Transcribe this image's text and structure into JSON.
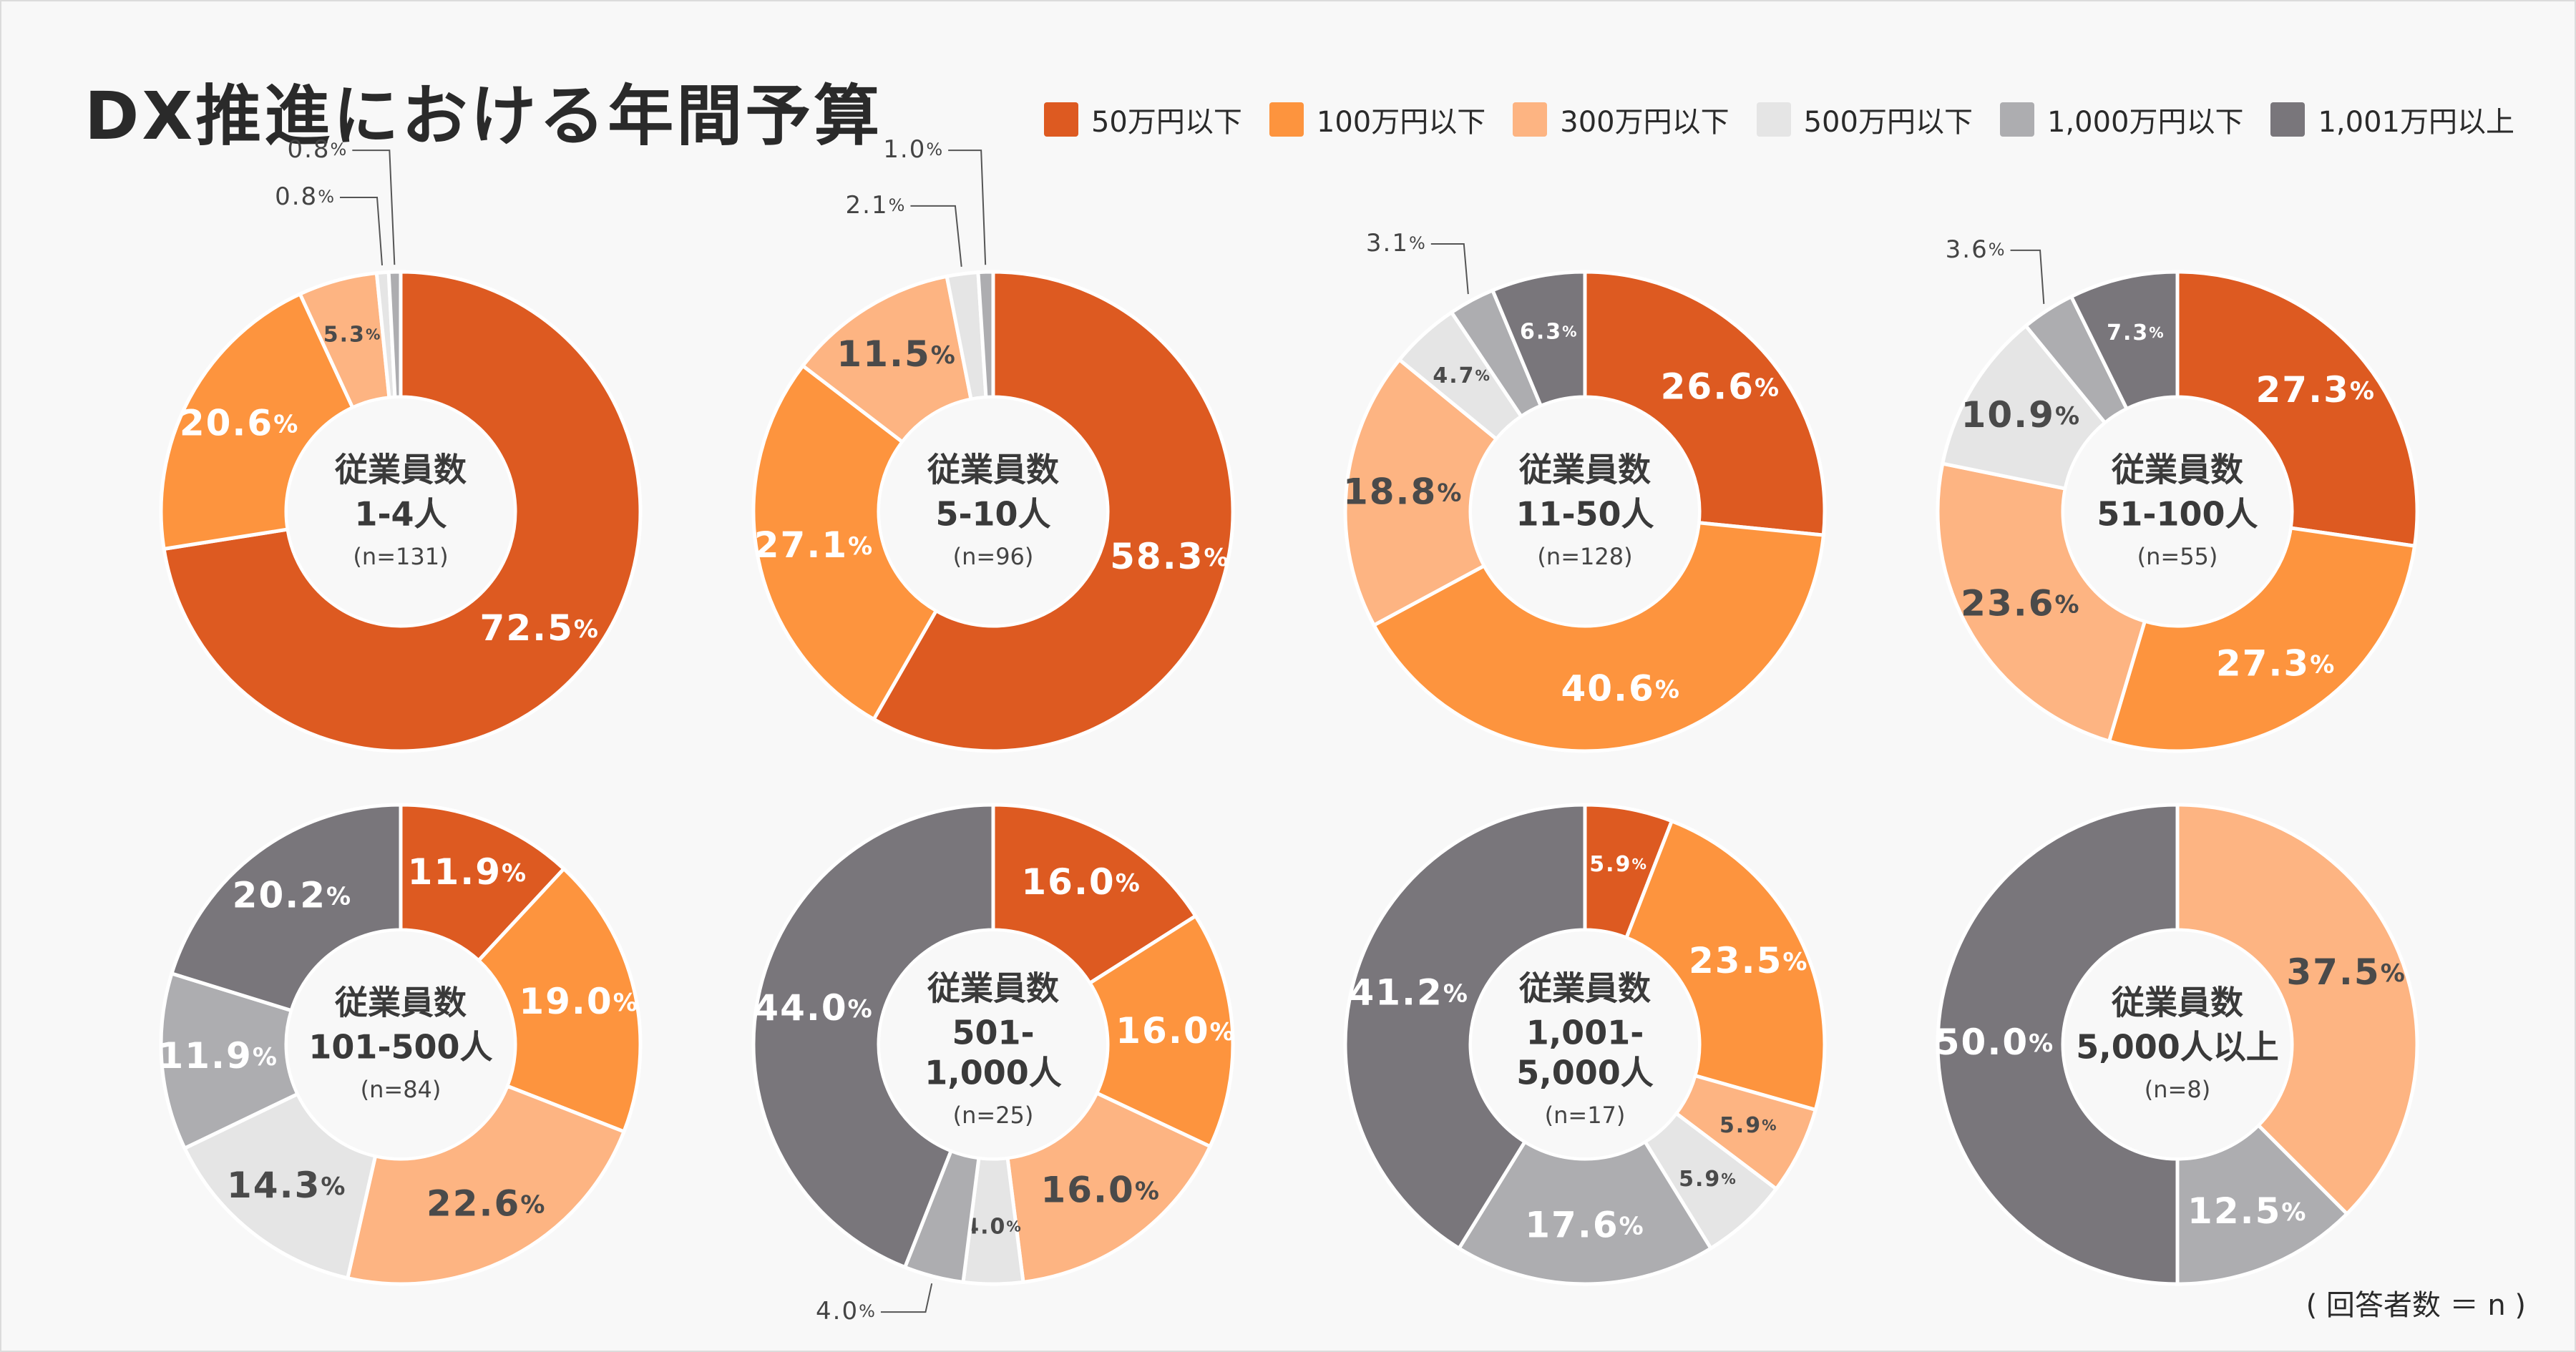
{
  "title": "DX推進における年間予算",
  "footnote": "( 回答者数 ＝ n )",
  "colors": {
    "50万円以下": "#dd5a21",
    "100万円以下": "#fd943e",
    "300万円以下": "#fdb482",
    "500万円以下": "#e5e5e5",
    "1,000万円以下": "#adadb0",
    "1,001万円以上": "#79767b"
  },
  "legend": [
    "50万円以下",
    "100万円以下",
    "300万円以下",
    "500万円以下",
    "1,000万円以下",
    "1,001万円以上"
  ],
  "chart_data": [
    {
      "type": "pie",
      "donut": true,
      "center_title": "従業員数",
      "center_lines": [
        "1-4人"
      ],
      "n_label": "(n=131)",
      "categories": [
        "50万円以下",
        "100万円以下",
        "300万円以下",
        "500万円以下",
        "1,000万円以下",
        "1,001万円以上"
      ],
      "values": [
        72.5,
        20.6,
        5.3,
        0.8,
        0.8,
        0
      ]
    },
    {
      "type": "pie",
      "donut": true,
      "center_title": "従業員数",
      "center_lines": [
        "5-10人"
      ],
      "n_label": "(n=96)",
      "categories": [
        "50万円以下",
        "100万円以下",
        "300万円以下",
        "500万円以下",
        "1,000万円以下",
        "1,001万円以上"
      ],
      "values": [
        58.3,
        27.1,
        11.5,
        2.1,
        1.0,
        0
      ]
    },
    {
      "type": "pie",
      "donut": true,
      "center_title": "従業員数",
      "center_lines": [
        "11-50人"
      ],
      "n_label": "(n=128)",
      "categories": [
        "50万円以下",
        "100万円以下",
        "300万円以下",
        "500万円以下",
        "1,000万円以下",
        "1,001万円以上"
      ],
      "values": [
        26.6,
        40.6,
        18.8,
        4.7,
        3.1,
        6.3
      ]
    },
    {
      "type": "pie",
      "donut": true,
      "center_title": "従業員数",
      "center_lines": [
        "51-100人"
      ],
      "n_label": "(n=55)",
      "categories": [
        "50万円以下",
        "100万円以下",
        "300万円以下",
        "500万円以下",
        "1,000万円以下",
        "1,001万円以上"
      ],
      "values": [
        27.3,
        27.3,
        23.6,
        10.9,
        3.6,
        7.3
      ]
    },
    {
      "type": "pie",
      "donut": true,
      "center_title": "従業員数",
      "center_lines": [
        "101-500人"
      ],
      "n_label": "(n=84)",
      "categories": [
        "50万円以下",
        "100万円以下",
        "300万円以下",
        "500万円以下",
        "1,000万円以下",
        "1,001万円以上"
      ],
      "values": [
        11.9,
        19.0,
        22.6,
        14.3,
        11.9,
        20.2
      ]
    },
    {
      "type": "pie",
      "donut": true,
      "center_title": "従業員数",
      "center_lines": [
        "501-",
        "1,000人"
      ],
      "n_label": "(n=25)",
      "categories": [
        "50万円以下",
        "100万円以下",
        "300万円以下",
        "500万円以下",
        "1,000万円以下",
        "1,001万円以上"
      ],
      "values": [
        16.0,
        16.0,
        16.0,
        4.0,
        4.0,
        44.0
      ]
    },
    {
      "type": "pie",
      "donut": true,
      "center_title": "従業員数",
      "center_lines": [
        "1,001-",
        "5,000人"
      ],
      "n_label": "(n=17)",
      "categories": [
        "50万円以下",
        "100万円以下",
        "300万円以下",
        "500万円以下",
        "1,000万円以下",
        "1,001万円以上"
      ],
      "values": [
        5.9,
        23.5,
        5.9,
        5.9,
        17.6,
        41.2
      ]
    },
    {
      "type": "pie",
      "donut": true,
      "center_title": "従業員数",
      "center_lines": [
        "5,000人以上"
      ],
      "n_label": "(n=8)",
      "categories": [
        "50万円以下",
        "100万円以下",
        "300万円以下",
        "500万円以下",
        "1,000万円以下",
        "1,001万円以上"
      ],
      "values": [
        0,
        0,
        37.5,
        0,
        12.5,
        50.0
      ]
    }
  ]
}
